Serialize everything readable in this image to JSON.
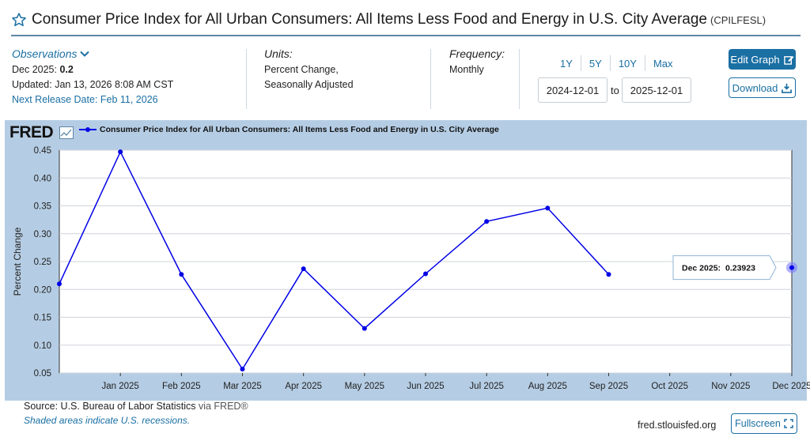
{
  "header": {
    "title": "Consumer Price Index for All Urban Consumers: All Items Less Food and Energy in U.S. City Average",
    "series_id": "(CPILFESL)"
  },
  "observations": {
    "toggle_label": "Observations",
    "latest_label": "Dec 2025:",
    "latest_value": "0.2",
    "updated": "Updated: Jan 13, 2026 8:08 AM CST",
    "next_release": "Next Release Date: Feb 11, 2026"
  },
  "units": {
    "label": "Units:",
    "line1": "Percent Change,",
    "line2": "Seasonally Adjusted"
  },
  "frequency": {
    "label": "Frequency:",
    "value": "Monthly"
  },
  "range": {
    "buttons": [
      "1Y",
      "5Y",
      "10Y",
      "Max"
    ],
    "start": "2024-12-01",
    "to_label": "to",
    "end": "2025-12-01"
  },
  "actions": {
    "edit_graph": "Edit Graph",
    "download": "Download",
    "fullscreen": "Fullscreen"
  },
  "graph": {
    "logo": "FRED",
    "legend_label": "Consumer Price Index for All Urban Consumers: All Items Less Food and Energy in U.S. City Average",
    "tooltip_label": "Dec 2025:",
    "tooltip_value": "0.23923"
  },
  "footer": {
    "source": "Source: U.S. Bureau of Labor Statistics",
    "via": "via FRED®",
    "recessions": "Shaded areas indicate U.S. recessions.",
    "url": "fred.stlouisfed.org"
  },
  "colors": {
    "series": "#0000e6",
    "panel_bg": "#b5cde4",
    "accent": "#1a6fa3"
  },
  "chart_data": {
    "type": "line",
    "title": "",
    "xlabel": "",
    "ylabel": "Percent Change",
    "x_tick_labels": [
      "Jan 2025",
      "Feb 2025",
      "Mar 2025",
      "Apr 2025",
      "May 2025",
      "Jun 2025",
      "Jul 2025",
      "Aug 2025",
      "Sep 2025",
      "Oct 2025",
      "Nov 2025",
      "Dec 2025"
    ],
    "y_ticks": [
      0.05,
      0.1,
      0.15,
      0.2,
      0.25,
      0.3,
      0.35,
      0.4,
      0.45
    ],
    "ylim": [
      0.05,
      0.45
    ],
    "grid": true,
    "series": [
      {
        "name": "Consumer Price Index for All Urban Consumers: All Items Less Food and Energy in U.S. City Average",
        "points": [
          {
            "x": "2024-12",
            "y": 0.21
          },
          {
            "x": "2025-01",
            "y": 0.447
          },
          {
            "x": "2025-02",
            "y": 0.227
          },
          {
            "x": "2025-03",
            "y": 0.057
          },
          {
            "x": "2025-04",
            "y": 0.237
          },
          {
            "x": "2025-05",
            "y": 0.13
          },
          {
            "x": "2025-06",
            "y": 0.228
          },
          {
            "x": "2025-07",
            "y": 0.322
          },
          {
            "x": "2025-08",
            "y": 0.346
          },
          {
            "x": "2025-09",
            "y": 0.227
          },
          {
            "x": "2025-12",
            "y": 0.23923
          }
        ]
      }
    ]
  }
}
